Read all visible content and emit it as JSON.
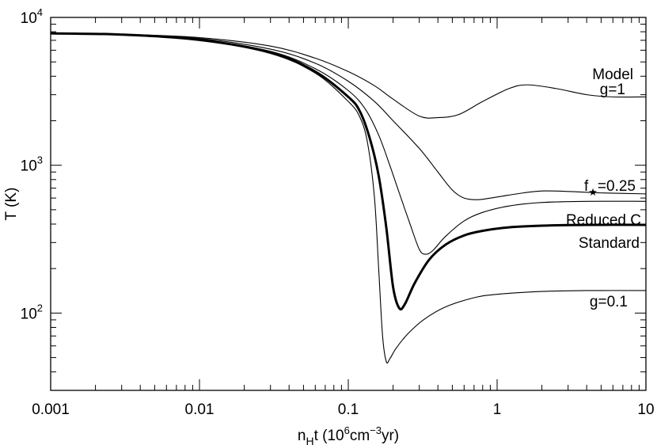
{
  "chart_data": {
    "type": "line",
    "xlabel": {
      "base": "n",
      "sub": "H",
      "rest1": "t (10",
      "exp1": "6",
      "rest2": "cm",
      "exp2": "−3",
      "rest3": "yr)"
    },
    "ylabel": "T (K)",
    "xscale": "log",
    "yscale": "log",
    "xlim": [
      0.001,
      10
    ],
    "ylim": [
      30,
      10000
    ],
    "grid": false,
    "xticks": [
      {
        "value": 0.001,
        "label": "0.001"
      },
      {
        "value": 0.01,
        "label": "0.01"
      },
      {
        "value": 0.1,
        "label": "0.1"
      },
      {
        "value": 1,
        "label": "1"
      },
      {
        "value": 10,
        "label": "10"
      }
    ],
    "yticks": [
      {
        "value": 100,
        "base": "10",
        "exp": "2"
      },
      {
        "value": 1000,
        "base": "10",
        "exp": "3"
      },
      {
        "value": 10000,
        "base": "10",
        "exp": "4"
      }
    ],
    "legend_title": "Model",
    "series": [
      {
        "name": "g=1",
        "label_parts": {
          "text": "g=1"
        },
        "thick": false,
        "points": [
          [
            0.001,
            7800
          ],
          [
            0.003,
            7700
          ],
          [
            0.01,
            7300
          ],
          [
            0.03,
            6400
          ],
          [
            0.06,
            5300
          ],
          [
            0.1,
            4300
          ],
          [
            0.15,
            3450
          ],
          [
            0.2,
            2800
          ],
          [
            0.3,
            2150
          ],
          [
            0.4,
            2100
          ],
          [
            0.55,
            2200
          ],
          [
            0.8,
            2700
          ],
          [
            1.2,
            3300
          ],
          [
            1.6,
            3500
          ],
          [
            2.5,
            3300
          ],
          [
            4,
            3000
          ],
          [
            6,
            2900
          ],
          [
            10,
            2900
          ]
        ]
      },
      {
        "name": "f*=0.25",
        "label_parts": {
          "text": "f",
          "sub": "★",
          "rest": "=0.25"
        },
        "thick": false,
        "points": [
          [
            0.001,
            7800
          ],
          [
            0.003,
            7700
          ],
          [
            0.01,
            7200
          ],
          [
            0.03,
            6100
          ],
          [
            0.06,
            4900
          ],
          [
            0.1,
            3700
          ],
          [
            0.15,
            2700
          ],
          [
            0.2,
            2000
          ],
          [
            0.3,
            1300
          ],
          [
            0.4,
            900
          ],
          [
            0.5,
            680
          ],
          [
            0.6,
            600
          ],
          [
            0.75,
            585
          ],
          [
            1,
            610
          ],
          [
            1.5,
            650
          ],
          [
            2,
            670
          ],
          [
            3,
            665
          ],
          [
            5,
            650
          ],
          [
            10,
            640
          ]
        ]
      },
      {
        "name": "Reduced C",
        "label_parts": {
          "text": "Reduced C"
        },
        "thick": false,
        "points": [
          [
            0.001,
            7800
          ],
          [
            0.003,
            7650
          ],
          [
            0.01,
            7100
          ],
          [
            0.03,
            5900
          ],
          [
            0.06,
            4500
          ],
          [
            0.1,
            3200
          ],
          [
            0.13,
            2400
          ],
          [
            0.16,
            1600
          ],
          [
            0.19,
            1000
          ],
          [
            0.22,
            650
          ],
          [
            0.26,
            400
          ],
          [
            0.3,
            270
          ],
          [
            0.33,
            250
          ],
          [
            0.37,
            265
          ],
          [
            0.45,
            330
          ],
          [
            0.6,
            420
          ],
          [
            0.8,
            480
          ],
          [
            1.2,
            530
          ],
          [
            2,
            560
          ],
          [
            4,
            570
          ],
          [
            10,
            570
          ]
        ]
      },
      {
        "name": "Standard",
        "label_parts": {
          "text": "Standard"
        },
        "thick": true,
        "points": [
          [
            0.001,
            7800
          ],
          [
            0.003,
            7650
          ],
          [
            0.01,
            7050
          ],
          [
            0.03,
            5800
          ],
          [
            0.06,
            4300
          ],
          [
            0.1,
            2900
          ],
          [
            0.12,
            2300
          ],
          [
            0.14,
            1500
          ],
          [
            0.16,
            850
          ],
          [
            0.18,
            380
          ],
          [
            0.2,
            150
          ],
          [
            0.22,
            108
          ],
          [
            0.24,
            115
          ],
          [
            0.28,
            160
          ],
          [
            0.35,
            230
          ],
          [
            0.45,
            290
          ],
          [
            0.6,
            335
          ],
          [
            0.8,
            360
          ],
          [
            1.2,
            380
          ],
          [
            2,
            390
          ],
          [
            4,
            395
          ],
          [
            10,
            395
          ]
        ]
      },
      {
        "name": "g=0.1",
        "label_parts": {
          "text": "g=0.1"
        },
        "thick": false,
        "points": [
          [
            0.001,
            7800
          ],
          [
            0.003,
            7650
          ],
          [
            0.01,
            7000
          ],
          [
            0.03,
            5700
          ],
          [
            0.06,
            4200
          ],
          [
            0.1,
            2700
          ],
          [
            0.12,
            2100
          ],
          [
            0.135,
            1400
          ],
          [
            0.15,
            600
          ],
          [
            0.16,
            200
          ],
          [
            0.17,
            70
          ],
          [
            0.18,
            47
          ],
          [
            0.19,
            49
          ],
          [
            0.21,
            58
          ],
          [
            0.25,
            72
          ],
          [
            0.32,
            90
          ],
          [
            0.45,
            110
          ],
          [
            0.7,
            127
          ],
          [
            1,
            134
          ],
          [
            2,
            140
          ],
          [
            4,
            142
          ],
          [
            10,
            142
          ]
        ]
      }
    ]
  }
}
